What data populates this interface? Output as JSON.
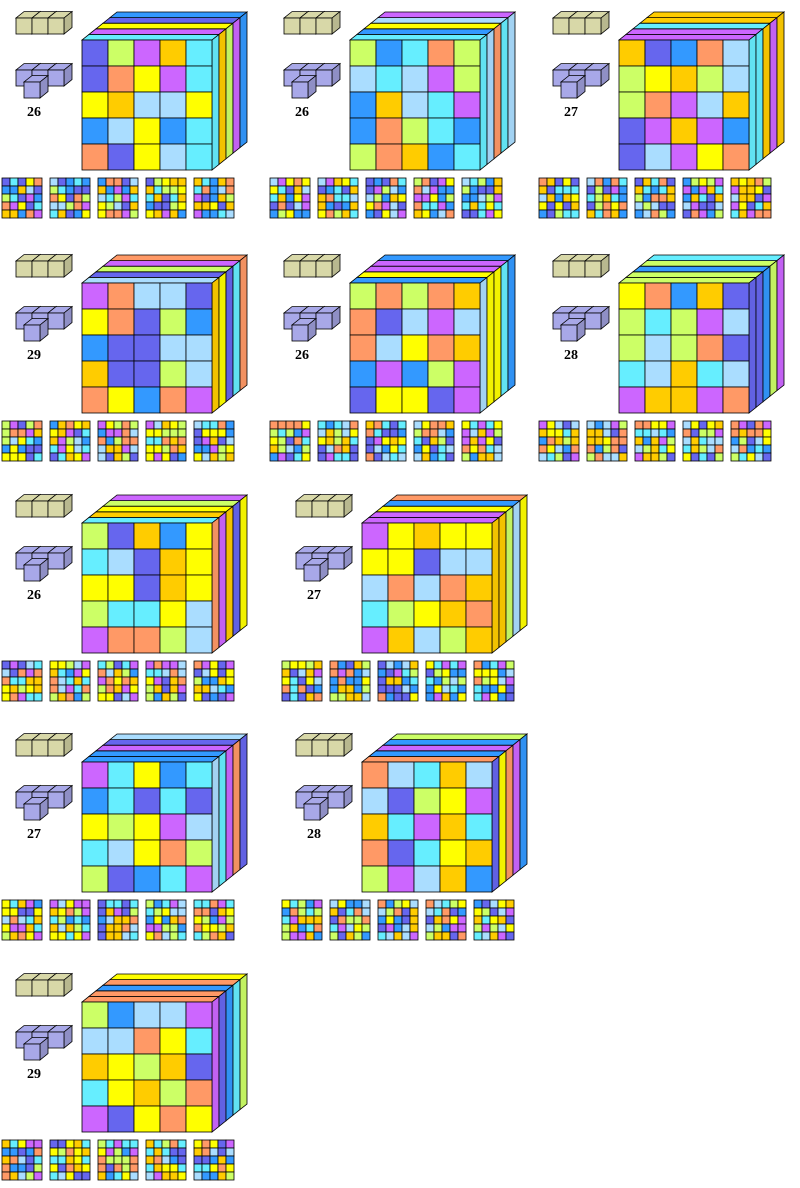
{
  "puzzles": [
    {
      "label": "26"
    },
    {
      "label": "26"
    },
    {
      "label": "27"
    },
    {
      "label": "29"
    },
    {
      "label": "26"
    },
    {
      "label": "28"
    },
    {
      "label": "26"
    },
    {
      "label": "27"
    },
    {
      "label": "27"
    },
    {
      "label": "28"
    },
    {
      "label": "29"
    }
  ]
}
